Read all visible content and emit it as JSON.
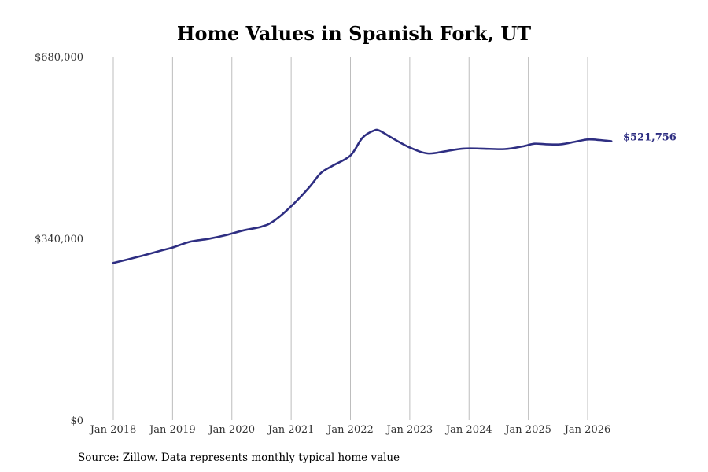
{
  "chart_data": {
    "type": "line",
    "title": "Home Values in Spanish Fork, UT",
    "xlabel": "",
    "ylabel": "",
    "ylim": [
      0,
      680000
    ],
    "y_ticks": [
      {
        "value": 0,
        "label": "$0"
      },
      {
        "value": 340000,
        "label": "$340,000"
      },
      {
        "value": 680000,
        "label": "$680,000"
      }
    ],
    "x_ticks": [
      {
        "value": 2018,
        "label": "Jan 2018"
      },
      {
        "value": 2019,
        "label": "Jan 2019"
      },
      {
        "value": 2020,
        "label": "Jan 2020"
      },
      {
        "value": 2021,
        "label": "Jan 2021"
      },
      {
        "value": 2022,
        "label": "Jan 2022"
      },
      {
        "value": 2023,
        "label": "Jan 2023"
      },
      {
        "value": 2024,
        "label": "Jan 2024"
      },
      {
        "value": 2025,
        "label": "Jan 2025"
      },
      {
        "value": 2026,
        "label": "Jan 2026"
      }
    ],
    "grid": "vertical",
    "series": [
      {
        "color": "#2e2e82",
        "points": [
          {
            "x": 2018.0,
            "y": 294000
          },
          {
            "x": 2018.4,
            "y": 305000
          },
          {
            "x": 2018.8,
            "y": 317000
          },
          {
            "x": 2019.0,
            "y": 323000
          },
          {
            "x": 2019.3,
            "y": 334000
          },
          {
            "x": 2019.6,
            "y": 339000
          },
          {
            "x": 2019.9,
            "y": 346000
          },
          {
            "x": 2020.2,
            "y": 355000
          },
          {
            "x": 2020.5,
            "y": 362000
          },
          {
            "x": 2020.7,
            "y": 372000
          },
          {
            "x": 2021.0,
            "y": 400000
          },
          {
            "x": 2021.3,
            "y": 435000
          },
          {
            "x": 2021.5,
            "y": 462000
          },
          {
            "x": 2021.7,
            "y": 476000
          },
          {
            "x": 2022.0,
            "y": 495000
          },
          {
            "x": 2022.2,
            "y": 528000
          },
          {
            "x": 2022.4,
            "y": 542000
          },
          {
            "x": 2022.5,
            "y": 541000
          },
          {
            "x": 2022.7,
            "y": 528000
          },
          {
            "x": 2023.0,
            "y": 510000
          },
          {
            "x": 2023.3,
            "y": 499000
          },
          {
            "x": 2023.6,
            "y": 503000
          },
          {
            "x": 2023.9,
            "y": 508000
          },
          {
            "x": 2024.2,
            "y": 508000
          },
          {
            "x": 2024.6,
            "y": 507000
          },
          {
            "x": 2024.9,
            "y": 512000
          },
          {
            "x": 2025.1,
            "y": 517000
          },
          {
            "x": 2025.3,
            "y": 516000
          },
          {
            "x": 2025.55,
            "y": 516000
          },
          {
            "x": 2025.8,
            "y": 521000
          },
          {
            "x": 2026.0,
            "y": 525000
          },
          {
            "x": 2026.2,
            "y": 524000
          },
          {
            "x": 2026.4,
            "y": 521756
          }
        ]
      }
    ],
    "end_label": "$521,756",
    "source": "Source: Zillow. Data represents monthly typical home value"
  }
}
